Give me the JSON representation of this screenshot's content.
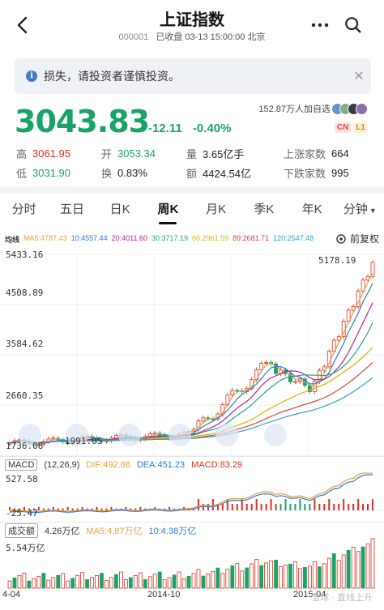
{
  "header": {
    "title": "上证指数",
    "code": "000001",
    "status": "已收盘 03-13 15:00:00 北京"
  },
  "notice": {
    "text": "损失，请投资者谨慎投资。"
  },
  "quote": {
    "price": "3043.83",
    "change": "-12.11",
    "change_pct": "-0.40%",
    "followers": "152.87万人加自选",
    "tag_cn": "CN",
    "tag_l1": "L1"
  },
  "stats": {
    "high_label": "高",
    "high": "3061.95",
    "open_label": "开",
    "open": "3053.34",
    "vol_label": "量",
    "vol": "3.65亿手",
    "up_label": "上涨家数",
    "up": "664",
    "low_label": "低",
    "low": "3031.90",
    "turn_label": "换",
    "turn": "0.83%",
    "amt_label": "额",
    "amt": "4424.54亿",
    "down_label": "下跌家数",
    "down": "995"
  },
  "tabs": [
    {
      "label": "分时"
    },
    {
      "label": "五日"
    },
    {
      "label": "日K"
    },
    {
      "label": "周K"
    },
    {
      "label": "月K"
    },
    {
      "label": "季K"
    },
    {
      "label": "年K"
    },
    {
      "label": "分钟"
    }
  ],
  "ma_legend": {
    "title": "均线",
    "items": [
      {
        "text": "MA5:4787.43",
        "color": "#e6a23c"
      },
      {
        "text": "10:4557.44",
        "color": "#2f7ad6"
      },
      {
        "text": "20:4011.60",
        "color": "#b0288f"
      },
      {
        "text": "30:3717.19",
        "color": "#2aa37a"
      },
      {
        "text": "60:2961.59",
        "color": "#d8b400"
      },
      {
        "text": "89:2681.71",
        "color": "#d6453d"
      },
      {
        "text": "120:2547.48",
        "color": "#35a0c8"
      }
    ]
  },
  "adjust_label": "前复权",
  "price_axis": {
    "t1": "5433.16",
    "t2": "4508.89",
    "t3": "3584.62",
    "t4": "2660.35",
    "t5": "1736.08"
  },
  "annot_high": "5178.19",
  "annot_low": "1991.05",
  "macd": {
    "name": "MACD",
    "params": "(12,26,9)",
    "dif": "DIF:492.88",
    "dea": "DEA:451.23",
    "macd": "MACD:83.29",
    "top": "527.58",
    "bottom": "-25.47"
  },
  "volume": {
    "name": "成交额",
    "value": "4.26万亿",
    "ma5": "MA5:4.87万亿",
    "ma10": "10:4.38万亿",
    "top": "5.54万亿"
  },
  "x_axis": {
    "l1": "4-04",
    "l2": "2014-10",
    "l3": "2015-04"
  },
  "watermark": "雪球 · 直线上升",
  "colors": {
    "up": "#e0301e",
    "down": "#1aa368"
  }
}
